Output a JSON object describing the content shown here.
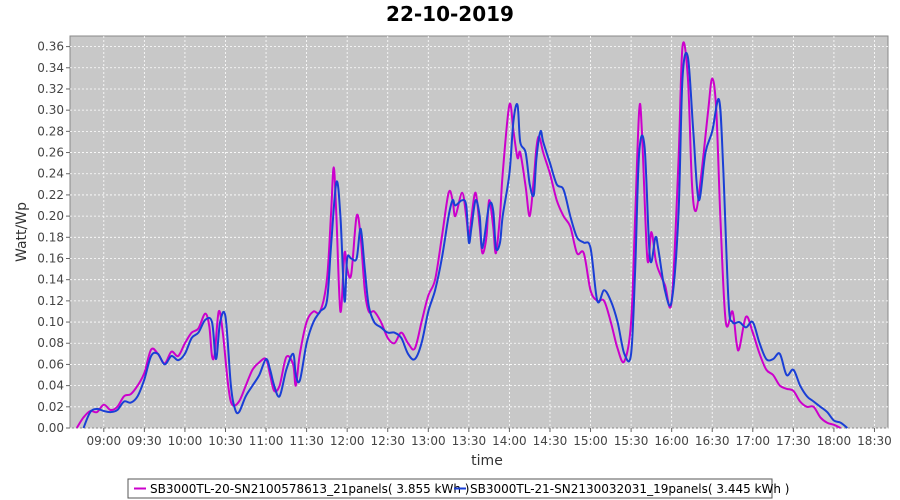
{
  "chart_data": {
    "type": "line",
    "title": "22-10-2019",
    "xlabel": "time",
    "ylabel": "Watt/Wp",
    "xlim": [
      "08:35",
      "18:40"
    ],
    "ylim": [
      0,
      0.37
    ],
    "x_ticks": [
      "09:00",
      "09:30",
      "10:00",
      "10:30",
      "11:00",
      "11:30",
      "12:00",
      "12:30",
      "13:00",
      "13:30",
      "14:00",
      "14:30",
      "15:00",
      "15:30",
      "16:00",
      "16:30",
      "17:00",
      "17:30",
      "18:00",
      "18:30"
    ],
    "y_ticks": [
      "0.00",
      "0.02",
      "0.04",
      "0.06",
      "0.08",
      "0.10",
      "0.12",
      "0.14",
      "0.16",
      "0.18",
      "0.20",
      "0.22",
      "0.24",
      "0.26",
      "0.28",
      "0.30",
      "0.32",
      "0.34",
      "0.36"
    ],
    "grid": true,
    "legend_position": "bottom",
    "series": [
      {
        "name": "SB3000TL-20-SN2100578613_21panels( 3.855 kWh )",
        "color": "#cc00cc",
        "points": [
          [
            "08:40",
            0.0
          ],
          [
            "08:45",
            0.01
          ],
          [
            "08:50",
            0.016
          ],
          [
            "08:55",
            0.015
          ],
          [
            "09:00",
            0.022
          ],
          [
            "09:05",
            0.017
          ],
          [
            "09:10",
            0.02
          ],
          [
            "09:15",
            0.03
          ],
          [
            "09:20",
            0.032
          ],
          [
            "09:25",
            0.04
          ],
          [
            "09:30",
            0.052
          ],
          [
            "09:35",
            0.074
          ],
          [
            "09:40",
            0.07
          ],
          [
            "09:45",
            0.061
          ],
          [
            "09:50",
            0.072
          ],
          [
            "09:55",
            0.068
          ],
          [
            "10:00",
            0.08
          ],
          [
            "10:05",
            0.09
          ],
          [
            "10:10",
            0.094
          ],
          [
            "10:15",
            0.108
          ],
          [
            "10:18",
            0.096
          ],
          [
            "10:20",
            0.068
          ],
          [
            "10:22",
            0.07
          ],
          [
            "10:25",
            0.11
          ],
          [
            "10:28",
            0.09
          ],
          [
            "10:32",
            0.04
          ],
          [
            "10:35",
            0.022
          ],
          [
            "10:40",
            0.025
          ],
          [
            "10:45",
            0.04
          ],
          [
            "10:50",
            0.055
          ],
          [
            "10:55",
            0.062
          ],
          [
            "11:00",
            0.065
          ],
          [
            "11:03",
            0.05
          ],
          [
            "11:06",
            0.035
          ],
          [
            "11:10",
            0.04
          ],
          [
            "11:15",
            0.067
          ],
          [
            "11:20",
            0.06
          ],
          [
            "11:22",
            0.04
          ],
          [
            "11:25",
            0.07
          ],
          [
            "11:30",
            0.1
          ],
          [
            "11:35",
            0.11
          ],
          [
            "11:40",
            0.11
          ],
          [
            "11:45",
            0.14
          ],
          [
            "11:48",
            0.2
          ],
          [
            "11:50",
            0.246
          ],
          [
            "11:52",
            0.2
          ],
          [
            "11:55",
            0.11
          ],
          [
            "11:58",
            0.165
          ],
          [
            "12:00",
            0.15
          ],
          [
            "12:03",
            0.145
          ],
          [
            "12:07",
            0.2
          ],
          [
            "12:10",
            0.18
          ],
          [
            "12:13",
            0.13
          ],
          [
            "12:16",
            0.11
          ],
          [
            "12:20",
            0.11
          ],
          [
            "12:25",
            0.1
          ],
          [
            "12:30",
            0.085
          ],
          [
            "12:35",
            0.08
          ],
          [
            "12:40",
            0.09
          ],
          [
            "12:45",
            0.08
          ],
          [
            "12:50",
            0.075
          ],
          [
            "12:55",
            0.1
          ],
          [
            "13:00",
            0.125
          ],
          [
            "13:05",
            0.14
          ],
          [
            "13:10",
            0.18
          ],
          [
            "13:15",
            0.222
          ],
          [
            "13:18",
            0.215
          ],
          [
            "13:20",
            0.2
          ],
          [
            "13:25",
            0.222
          ],
          [
            "13:28",
            0.2
          ],
          [
            "13:30",
            0.18
          ],
          [
            "13:32",
            0.2
          ],
          [
            "13:35",
            0.222
          ],
          [
            "13:38",
            0.19
          ],
          [
            "13:40",
            0.165
          ],
          [
            "13:43",
            0.18
          ],
          [
            "13:45",
            0.215
          ],
          [
            "13:48",
            0.19
          ],
          [
            "13:50",
            0.165
          ],
          [
            "13:53",
            0.2
          ],
          [
            "13:55",
            0.24
          ],
          [
            "14:00",
            0.305
          ],
          [
            "14:03",
            0.28
          ],
          [
            "14:06",
            0.255
          ],
          [
            "14:08",
            0.26
          ],
          [
            "14:12",
            0.228
          ],
          [
            "14:15",
            0.2
          ],
          [
            "14:18",
            0.235
          ],
          [
            "14:20",
            0.265
          ],
          [
            "14:22",
            0.275
          ],
          [
            "14:25",
            0.26
          ],
          [
            "14:30",
            0.24
          ],
          [
            "14:35",
            0.215
          ],
          [
            "14:40",
            0.2
          ],
          [
            "14:45",
            0.19
          ],
          [
            "14:50",
            0.165
          ],
          [
            "14:55",
            0.165
          ],
          [
            "15:00",
            0.13
          ],
          [
            "15:05",
            0.12
          ],
          [
            "15:10",
            0.12
          ],
          [
            "15:15",
            0.1
          ],
          [
            "15:20",
            0.075
          ],
          [
            "15:25",
            0.063
          ],
          [
            "15:30",
            0.1
          ],
          [
            "15:33",
            0.2
          ],
          [
            "15:36",
            0.3
          ],
          [
            "15:38",
            0.28
          ],
          [
            "15:42",
            0.16
          ],
          [
            "15:45",
            0.185
          ],
          [
            "15:48",
            0.16
          ],
          [
            "15:50",
            0.15
          ],
          [
            "15:55",
            0.135
          ],
          [
            "16:00",
            0.12
          ],
          [
            "16:05",
            0.25
          ],
          [
            "16:08",
            0.36
          ],
          [
            "16:12",
            0.33
          ],
          [
            "16:15",
            0.23
          ],
          [
            "16:18",
            0.205
          ],
          [
            "16:22",
            0.24
          ],
          [
            "16:27",
            0.3
          ],
          [
            "16:30",
            0.33
          ],
          [
            "16:33",
            0.3
          ],
          [
            "16:36",
            0.2
          ],
          [
            "16:40",
            0.1
          ],
          [
            "16:45",
            0.11
          ],
          [
            "16:48",
            0.08
          ],
          [
            "16:50",
            0.075
          ],
          [
            "16:55",
            0.105
          ],
          [
            "17:00",
            0.09
          ],
          [
            "17:05",
            0.07
          ],
          [
            "17:10",
            0.055
          ],
          [
            "17:15",
            0.05
          ],
          [
            "17:20",
            0.04
          ],
          [
            "17:25",
            0.037
          ],
          [
            "17:30",
            0.035
          ],
          [
            "17:35",
            0.025
          ],
          [
            "17:40",
            0.02
          ],
          [
            "17:45",
            0.02
          ],
          [
            "17:50",
            0.01
          ],
          [
            "17:55",
            0.005
          ],
          [
            "18:00",
            0.003
          ],
          [
            "18:05",
            0.0
          ]
        ]
      },
      {
        "name": "SB3000TL-21-SN2130032031_19panels( 3.445 kWh )",
        "color": "#1a3fd6",
        "points": [
          [
            "08:45",
            0.0
          ],
          [
            "08:50",
            0.015
          ],
          [
            "08:55",
            0.018
          ],
          [
            "09:00",
            0.016
          ],
          [
            "09:05",
            0.015
          ],
          [
            "09:10",
            0.017
          ],
          [
            "09:15",
            0.025
          ],
          [
            "09:20",
            0.024
          ],
          [
            "09:25",
            0.03
          ],
          [
            "09:30",
            0.046
          ],
          [
            "09:35",
            0.068
          ],
          [
            "09:40",
            0.07
          ],
          [
            "09:45",
            0.06
          ],
          [
            "09:50",
            0.068
          ],
          [
            "09:55",
            0.064
          ],
          [
            "10:00",
            0.07
          ],
          [
            "10:05",
            0.085
          ],
          [
            "10:10",
            0.09
          ],
          [
            "10:15",
            0.102
          ],
          [
            "10:20",
            0.1
          ],
          [
            "10:23",
            0.065
          ],
          [
            "10:26",
            0.1
          ],
          [
            "10:30",
            0.105
          ],
          [
            "10:34",
            0.04
          ],
          [
            "10:37",
            0.018
          ],
          [
            "10:40",
            0.015
          ],
          [
            "10:45",
            0.03
          ],
          [
            "10:50",
            0.04
          ],
          [
            "10:55",
            0.05
          ],
          [
            "11:00",
            0.065
          ],
          [
            "11:03",
            0.055
          ],
          [
            "11:06",
            0.04
          ],
          [
            "11:10",
            0.03
          ],
          [
            "11:15",
            0.055
          ],
          [
            "11:20",
            0.07
          ],
          [
            "11:22",
            0.05
          ],
          [
            "11:25",
            0.045
          ],
          [
            "11:30",
            0.08
          ],
          [
            "11:35",
            0.1
          ],
          [
            "11:40",
            0.11
          ],
          [
            "11:45",
            0.12
          ],
          [
            "11:48",
            0.17
          ],
          [
            "11:52",
            0.232
          ],
          [
            "11:55",
            0.2
          ],
          [
            "11:58",
            0.12
          ],
          [
            "12:00",
            0.16
          ],
          [
            "12:03",
            0.16
          ],
          [
            "12:07",
            0.16
          ],
          [
            "12:10",
            0.188
          ],
          [
            "12:13",
            0.15
          ],
          [
            "12:16",
            0.115
          ],
          [
            "12:20",
            0.1
          ],
          [
            "12:25",
            0.095
          ],
          [
            "12:30",
            0.09
          ],
          [
            "12:35",
            0.09
          ],
          [
            "12:40",
            0.085
          ],
          [
            "12:45",
            0.07
          ],
          [
            "12:50",
            0.065
          ],
          [
            "12:55",
            0.08
          ],
          [
            "13:00",
            0.11
          ],
          [
            "13:05",
            0.13
          ],
          [
            "13:10",
            0.16
          ],
          [
            "13:15",
            0.2
          ],
          [
            "13:18",
            0.215
          ],
          [
            "13:20",
            0.21
          ],
          [
            "13:25",
            0.215
          ],
          [
            "13:28",
            0.21
          ],
          [
            "13:30",
            0.175
          ],
          [
            "13:32",
            0.19
          ],
          [
            "13:35",
            0.215
          ],
          [
            "13:38",
            0.2
          ],
          [
            "13:40",
            0.17
          ],
          [
            "13:45",
            0.21
          ],
          [
            "13:48",
            0.205
          ],
          [
            "13:50",
            0.17
          ],
          [
            "13:53",
            0.175
          ],
          [
            "13:55",
            0.2
          ],
          [
            "14:00",
            0.24
          ],
          [
            "14:03",
            0.29
          ],
          [
            "14:06",
            0.305
          ],
          [
            "14:08",
            0.27
          ],
          [
            "14:12",
            0.26
          ],
          [
            "14:15",
            0.23
          ],
          [
            "14:18",
            0.22
          ],
          [
            "14:20",
            0.255
          ],
          [
            "14:23",
            0.28
          ],
          [
            "14:25",
            0.27
          ],
          [
            "14:30",
            0.25
          ],
          [
            "14:35",
            0.23
          ],
          [
            "14:40",
            0.225
          ],
          [
            "14:45",
            0.2
          ],
          [
            "14:50",
            0.18
          ],
          [
            "14:55",
            0.175
          ],
          [
            "15:00",
            0.17
          ],
          [
            "15:05",
            0.12
          ],
          [
            "15:10",
            0.13
          ],
          [
            "15:15",
            0.12
          ],
          [
            "15:20",
            0.1
          ],
          [
            "15:25",
            0.07
          ],
          [
            "15:30",
            0.07
          ],
          [
            "15:33",
            0.15
          ],
          [
            "15:36",
            0.26
          ],
          [
            "15:40",
            0.265
          ],
          [
            "15:44",
            0.16
          ],
          [
            "15:48",
            0.18
          ],
          [
            "15:50",
            0.17
          ],
          [
            "15:55",
            0.13
          ],
          [
            "16:00",
            0.12
          ],
          [
            "16:05",
            0.2
          ],
          [
            "16:08",
            0.33
          ],
          [
            "16:12",
            0.35
          ],
          [
            "16:16",
            0.28
          ],
          [
            "16:20",
            0.215
          ],
          [
            "16:25",
            0.26
          ],
          [
            "16:30",
            0.28
          ],
          [
            "16:35",
            0.31
          ],
          [
            "16:38",
            0.25
          ],
          [
            "16:42",
            0.12
          ],
          [
            "16:45",
            0.1
          ],
          [
            "16:50",
            0.1
          ],
          [
            "16:55",
            0.095
          ],
          [
            "17:00",
            0.1
          ],
          [
            "17:05",
            0.08
          ],
          [
            "17:10",
            0.065
          ],
          [
            "17:15",
            0.065
          ],
          [
            "17:20",
            0.07
          ],
          [
            "17:25",
            0.05
          ],
          [
            "17:30",
            0.055
          ],
          [
            "17:35",
            0.04
          ],
          [
            "17:40",
            0.03
          ],
          [
            "17:45",
            0.025
          ],
          [
            "17:50",
            0.02
          ],
          [
            "17:55",
            0.015
          ],
          [
            "18:00",
            0.007
          ],
          [
            "18:05",
            0.005
          ],
          [
            "18:10",
            0.0
          ]
        ]
      }
    ]
  }
}
